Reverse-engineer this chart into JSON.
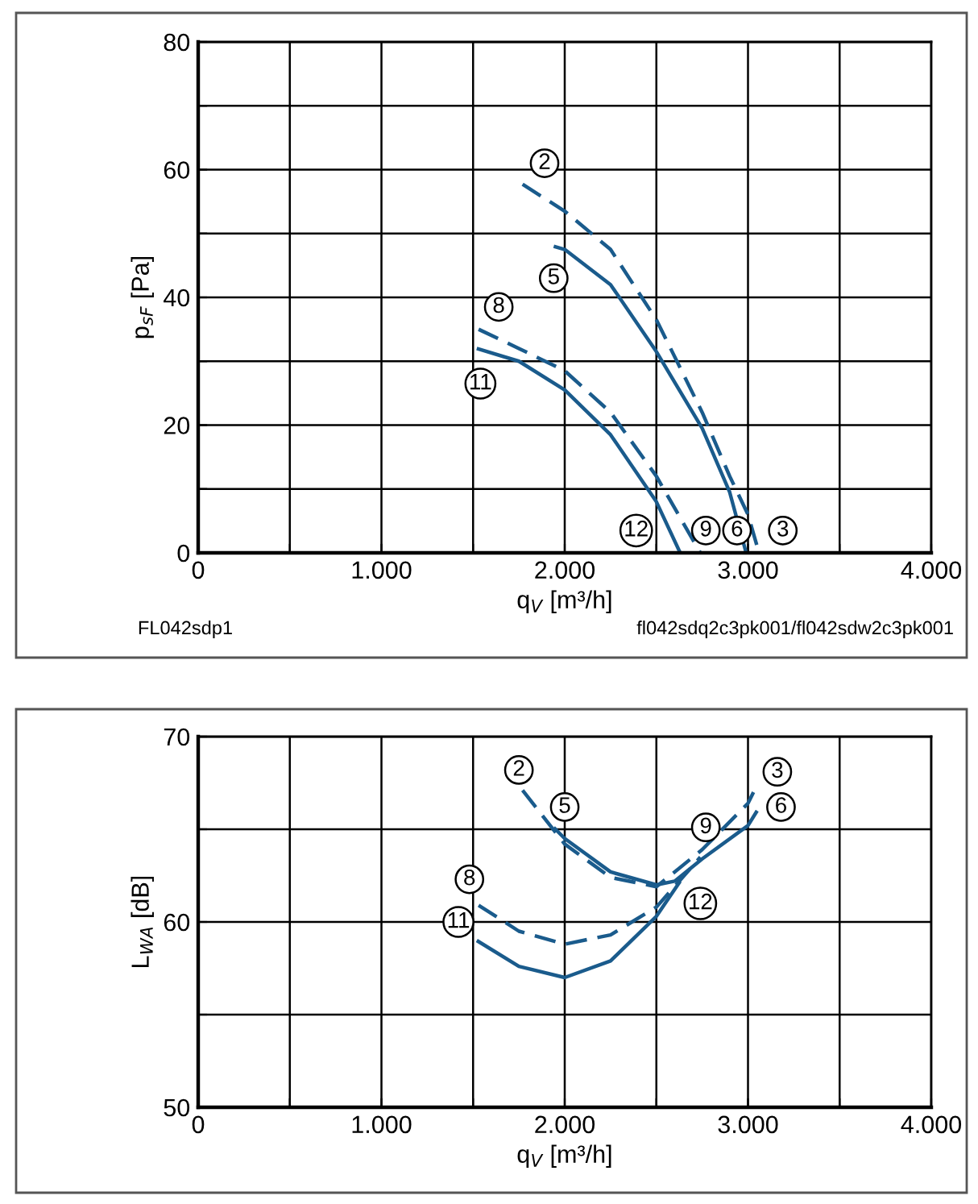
{
  "chart_data": [
    {
      "type": "line",
      "xlabel": "q$_{V}$ [m³/h]",
      "ylabel": "p$_{sF}$ [Pa]",
      "xlim": [
        0,
        4000
      ],
      "xticks": [
        0,
        {
          "value": 500,
          "label": null
        },
        {
          "value": 1000,
          "label": "1.000"
        },
        {
          "value": 1500,
          "label": null
        },
        {
          "value": 2000,
          "label": "2.000"
        },
        {
          "value": 2500,
          "label": null
        },
        {
          "value": 3000,
          "label": "3.000"
        },
        {
          "value": 3500,
          "label": null
        },
        {
          "value": 4000,
          "label": "4.000"
        }
      ],
      "ylim": [
        0,
        80
      ],
      "yticks": [
        0,
        {
          "value": 10,
          "label": null
        },
        20,
        {
          "value": 30,
          "label": null
        },
        40,
        {
          "value": 50,
          "label": null
        },
        60,
        {
          "value": 70,
          "label": null
        },
        80
      ],
      "grid": true,
      "legend": false,
      "marker": "none",
      "series": [
        {
          "color": "#1a5b8c",
          "line_style": "dashed",
          "x": [
            1770,
            2000,
            2250,
            2500,
            2750,
            2900,
            3000,
            3060
          ],
          "values": [
            57.7,
            53.5,
            47.5,
            36.5,
            22,
            12,
            6,
            0
          ]
        },
        {
          "color": "#1a5b8c",
          "line_style": "solid",
          "x": [
            1940,
            2000,
            2250,
            2500,
            2750,
            2900,
            2990
          ],
          "values": [
            48,
            47.5,
            42,
            31.5,
            19.5,
            9.5,
            0
          ]
        },
        {
          "color": "#1a5b8c",
          "line_style": "dashed",
          "x": [
            1530,
            1750,
            2000,
            2250,
            2500,
            2740
          ],
          "values": [
            35,
            32,
            28.5,
            22,
            12,
            0
          ]
        },
        {
          "color": "#1a5b8c",
          "line_style": "solid",
          "x": [
            1520,
            1750,
            2000,
            2250,
            2500,
            2630
          ],
          "values": [
            32,
            30,
            25.5,
            18.5,
            8,
            0
          ]
        }
      ],
      "annotations": [
        {
          "text": "2",
          "x": 1890,
          "y": 61
        },
        {
          "text": "5",
          "x": 1940,
          "y": 43
        },
        {
          "text": "8",
          "x": 1640,
          "y": 38.5
        },
        {
          "text": "11",
          "x": 1540,
          "y": 26.5
        },
        {
          "text": "12",
          "x": 2390,
          "y": 3.5
        },
        {
          "text": "9",
          "x": 2770,
          "y": 3.5
        },
        {
          "text": "6",
          "x": 2940,
          "y": 3.5
        },
        {
          "text": "3",
          "x": 3190,
          "y": 3.5
        },
        "FL042sdp1",
        "fl042sdq2c3pk001/fl042sdw2c3pk001"
      ]
    },
    {
      "type": "line",
      "xlabel": "q$_{V}$ [m³/h]",
      "ylabel": "L$_{WA}$ [dB]",
      "xlim": [
        0,
        4000
      ],
      "xticks": [
        0,
        {
          "value": 500,
          "label": null
        },
        {
          "value": 1000,
          "label": "1.000"
        },
        {
          "value": 1500,
          "label": null
        },
        {
          "value": 2000,
          "label": "2.000"
        },
        {
          "value": 2500,
          "label": null
        },
        {
          "value": 3000,
          "label": "3.000"
        },
        {
          "value": 3500,
          "label": null
        },
        {
          "value": 4000,
          "label": "4.000"
        }
      ],
      "ylim": [
        50,
        70
      ],
      "yticks": [
        50,
        {
          "value": 55,
          "label": null
        },
        60,
        {
          "value": 65,
          "label": null
        },
        70
      ],
      "grid": true,
      "legend": false,
      "marker": "none",
      "series": [
        {
          "color": "#1a5b8c",
          "line_style": "dashed",
          "x": [
            1770,
            2000,
            2250,
            2500,
            2750,
            3000,
            3030
          ],
          "values": [
            67.1,
            64.2,
            62.4,
            61.9,
            63.9,
            66.4,
            67
          ]
        },
        {
          "color": "#1a5b8c",
          "line_style": "solid",
          "x": [
            1940,
            2000,
            2250,
            2500,
            2600,
            2750,
            3000,
            3050
          ],
          "values": [
            65.1,
            64.5,
            62.7,
            62,
            62.2,
            63.4,
            65.2,
            66
          ]
        },
        {
          "color": "#1a5b8c",
          "line_style": "dashed",
          "x": [
            1530,
            1750,
            2000,
            2250,
            2500,
            2740
          ],
          "values": [
            60.9,
            59.5,
            58.8,
            59.3,
            60.8,
            63.5
          ]
        },
        {
          "color": "#1a5b8c",
          "line_style": "solid",
          "x": [
            1520,
            1750,
            2000,
            2250,
            2500,
            2630
          ],
          "values": [
            59,
            57.6,
            57,
            57.9,
            60.3,
            62.2
          ]
        }
      ],
      "annotations": [
        {
          "text": "2",
          "x": 1750,
          "y": 68.2
        },
        {
          "text": "5",
          "x": 2000,
          "y": 66.2
        },
        {
          "text": "3",
          "x": 3160,
          "y": 68.1
        },
        {
          "text": "6",
          "x": 3180,
          "y": 66.2
        },
        {
          "text": "9",
          "x": 2770,
          "y": 65.1
        },
        {
          "text": "8",
          "x": 1480,
          "y": 62.3
        },
        {
          "text": "11",
          "x": 1420,
          "y": 60
        },
        {
          "text": "12",
          "x": 2740,
          "y": 61
        }
      ]
    }
  ]
}
